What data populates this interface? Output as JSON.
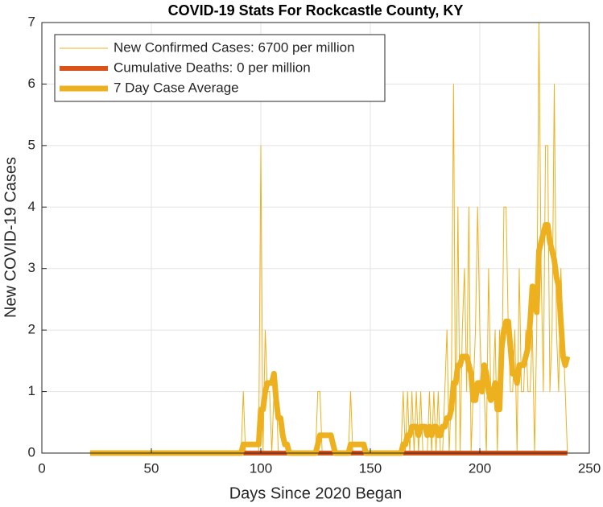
{
  "chart_data": {
    "type": "line",
    "title": "COVID-19 Stats For Rockcastle County, KY",
    "x_label": "Days Since 2020 Began",
    "y_label": "New COVID-19 Cases",
    "xlim": [
      0,
      250
    ],
    "xticks": [
      0,
      50,
      100,
      150,
      200,
      250
    ],
    "ylim": [
      0,
      7
    ],
    "yticks": [
      0,
      1,
      2,
      3,
      4,
      5,
      6,
      7
    ],
    "grid": true,
    "legend": "upper left",
    "x": [
      22,
      23,
      24,
      25,
      26,
      27,
      28,
      29,
      30,
      31,
      32,
      33,
      34,
      35,
      36,
      37,
      38,
      39,
      40,
      41,
      42,
      43,
      44,
      45,
      46,
      47,
      48,
      49,
      50,
      51,
      52,
      53,
      54,
      55,
      56,
      57,
      58,
      59,
      60,
      61,
      62,
      63,
      64,
      65,
      66,
      67,
      68,
      69,
      70,
      71,
      72,
      73,
      74,
      75,
      76,
      77,
      78,
      79,
      80,
      81,
      82,
      83,
      84,
      85,
      86,
      87,
      88,
      89,
      90,
      91,
      92,
      93,
      94,
      95,
      96,
      97,
      98,
      99,
      100,
      101,
      102,
      103,
      104,
      105,
      106,
      107,
      108,
      109,
      110,
      111,
      112,
      113,
      114,
      115,
      116,
      117,
      118,
      119,
      120,
      121,
      122,
      123,
      124,
      125,
      126,
      127,
      128,
      129,
      130,
      131,
      132,
      133,
      134,
      135,
      136,
      137,
      138,
      139,
      140,
      141,
      142,
      143,
      144,
      145,
      146,
      147,
      148,
      149,
      150,
      151,
      152,
      153,
      154,
      155,
      156,
      157,
      158,
      159,
      160,
      161,
      162,
      163,
      164,
      165,
      166,
      167,
      168,
      169,
      170,
      171,
      172,
      173,
      174,
      175,
      176,
      177,
      178,
      179,
      180,
      181,
      182,
      183,
      184,
      185,
      186,
      187,
      188,
      189,
      190,
      191,
      192,
      193,
      194,
      195,
      196,
      197,
      198,
      199,
      200,
      201,
      202,
      203,
      204,
      205,
      206,
      207,
      208,
      209,
      210,
      211,
      212,
      213,
      214,
      215,
      216,
      217,
      218,
      219,
      220,
      221,
      222,
      223,
      224,
      225,
      226,
      227,
      228,
      229,
      230,
      231,
      232,
      233,
      234,
      235,
      236,
      237,
      238,
      239,
      240
    ],
    "series": [
      {
        "name": "New Confirmed Cases: 6700 per million",
        "color": "#EDB120",
        "width": 1,
        "values": [
          0,
          0,
          0,
          0,
          0,
          0,
          0,
          0,
          0,
          0,
          0,
          0,
          0,
          0,
          0,
          0,
          0,
          0,
          0,
          0,
          0,
          0,
          0,
          0,
          0,
          0,
          0,
          0,
          0,
          0,
          0,
          0,
          0,
          0,
          0,
          0,
          0,
          0,
          0,
          0,
          0,
          0,
          0,
          0,
          0,
          0,
          0,
          0,
          0,
          0,
          0,
          0,
          0,
          0,
          0,
          0,
          0,
          0,
          0,
          0,
          0,
          0,
          0,
          0,
          0,
          0,
          0,
          0,
          0,
          0,
          1,
          0,
          0,
          0,
          0,
          0,
          0,
          0,
          5,
          0,
          2,
          1,
          1,
          0,
          1,
          1,
          0,
          0,
          0,
          0,
          0,
          0,
          0,
          0,
          0,
          0,
          0,
          0,
          0,
          0,
          0,
          0,
          0,
          0,
          1,
          1,
          0,
          0,
          0,
          0,
          0,
          0,
          0,
          0,
          0,
          0,
          0,
          0,
          0,
          1,
          0,
          0,
          0,
          0,
          0,
          0,
          0,
          0,
          0,
          0,
          0,
          0,
          0,
          0,
          0,
          0,
          0,
          0,
          0,
          0,
          0,
          0,
          0,
          1,
          0,
          1,
          0,
          1,
          0,
          1,
          0,
          1,
          0,
          0,
          0,
          1,
          0,
          1,
          0,
          1,
          0,
          0,
          1,
          2,
          0,
          1,
          6,
          0,
          4,
          0,
          2,
          3,
          1,
          4,
          0,
          1,
          2,
          4,
          2,
          1,
          1,
          0,
          3,
          1,
          1,
          2,
          0,
          2,
          1,
          4,
          4,
          2,
          1,
          1,
          2,
          0,
          3,
          1,
          1,
          2,
          1,
          1,
          2,
          0,
          2,
          7,
          3,
          1,
          5,
          5,
          1,
          2,
          6,
          2,
          1,
          3,
          2,
          1,
          0
        ]
      },
      {
        "name": "Cumulative Deaths: 0 per million",
        "color": "#D95319",
        "width": 6,
        "values": [
          null,
          null,
          null,
          null,
          null,
          null,
          null,
          null,
          null,
          null,
          null,
          null,
          null,
          null,
          null,
          null,
          null,
          null,
          null,
          null,
          null,
          null,
          null,
          null,
          null,
          null,
          null,
          null,
          null,
          null,
          null,
          null,
          null,
          null,
          null,
          null,
          null,
          null,
          null,
          null,
          null,
          null,
          null,
          null,
          null,
          null,
          null,
          null,
          null,
          null,
          null,
          null,
          null,
          null,
          null,
          null,
          null,
          null,
          null,
          null,
          null,
          null,
          null,
          null,
          null,
          null,
          null,
          null,
          null,
          null,
          0,
          0,
          0,
          0,
          0,
          0,
          0,
          0,
          0,
          0,
          0,
          0,
          0,
          0,
          0,
          0,
          0,
          0,
          0,
          0,
          0,
          0,
          0,
          0,
          0,
          0,
          0,
          0,
          0,
          0,
          0,
          0,
          0,
          0,
          0,
          0,
          0,
          0,
          0,
          0,
          0,
          0,
          0,
          0,
          0,
          0,
          0,
          0,
          0,
          0,
          0,
          0,
          0,
          0,
          0,
          0,
          0,
          0,
          0,
          0,
          0,
          0,
          0,
          0,
          0,
          0,
          0,
          0,
          0,
          0,
          0,
          0,
          0,
          0,
          0,
          0,
          0,
          0,
          0,
          0,
          0,
          0,
          0,
          0,
          0,
          0,
          0,
          0,
          0,
          0,
          0,
          0,
          0,
          0,
          0,
          0,
          0,
          0,
          0,
          0,
          0,
          0,
          0,
          0,
          0,
          0,
          0,
          0,
          0,
          0,
          0,
          0,
          0,
          0,
          0,
          0,
          0,
          0,
          0,
          0,
          0,
          0,
          0,
          0,
          0,
          0,
          0,
          0,
          0,
          0,
          0,
          0,
          0,
          0,
          0,
          0,
          0,
          0,
          0,
          0,
          0,
          0,
          0,
          0,
          0,
          0,
          0,
          0,
          0
        ]
      },
      {
        "name": "7 Day Case Average",
        "color": "#EDB120",
        "width": 7,
        "values": [
          0,
          0,
          0,
          0,
          0,
          0,
          0,
          0,
          0,
          0,
          0,
          0,
          0,
          0,
          0,
          0,
          0,
          0,
          0,
          0,
          0,
          0,
          0,
          0,
          0,
          0,
          0,
          0,
          0,
          0,
          0,
          0,
          0,
          0,
          0,
          0,
          0,
          0,
          0,
          0,
          0,
          0,
          0,
          0,
          0,
          0,
          0,
          0,
          0,
          0,
          0,
          0,
          0,
          0,
          0,
          0,
          0,
          0,
          0,
          0,
          0,
          0,
          0,
          0,
          0,
          0,
          0,
          0,
          0,
          0,
          0.14,
          0.14,
          0.14,
          0.14,
          0.14,
          0.14,
          0.14,
          0.14,
          0.71,
          0.71,
          1,
          1.14,
          1.14,
          1.14,
          1.29,
          0.86,
          0.57,
          0.57,
          0.29,
          0.14,
          0.14,
          0,
          0,
          0,
          0,
          0,
          0,
          0,
          0,
          0,
          0,
          0,
          0,
          0,
          0.14,
          0.29,
          0.29,
          0.29,
          0.29,
          0.29,
          0.29,
          0.14,
          0,
          0,
          0,
          0,
          0,
          0,
          0,
          0.14,
          0.14,
          0.14,
          0.14,
          0.14,
          0.14,
          0.14,
          0,
          0,
          0,
          0,
          0,
          0,
          0,
          0,
          0,
          0,
          0,
          0,
          0,
          0,
          0,
          0,
          0,
          0.14,
          0.14,
          0.29,
          0.29,
          0.43,
          0.43,
          0.43,
          0.29,
          0.43,
          0.43,
          0.43,
          0.29,
          0.43,
          0.29,
          0.43,
          0.43,
          0.29,
          0.29,
          0.43,
          0.43,
          0.57,
          0.57,
          0.71,
          1.14,
          1.14,
          1.43,
          1.43,
          1.57,
          1.57,
          1.57,
          1.43,
          1.29,
          0.86,
          0.86,
          1.14,
          1.14,
          1,
          1.43,
          1.29,
          1,
          0.86,
          1,
          1.14,
          0.71,
          0.71,
          1.71,
          2,
          2.14,
          2.14,
          1.71,
          1.29,
          1.29,
          1.14,
          1.43,
          1.43,
          1.43,
          1.57,
          1.71,
          2.14,
          2.71,
          2.43,
          2.29,
          3.29,
          3.43,
          3.57,
          3.71,
          3.71,
          3.43,
          3.29,
          3.14,
          2.86,
          2.71,
          2.14,
          1.57,
          1.43,
          1.57
        ]
      }
    ]
  }
}
